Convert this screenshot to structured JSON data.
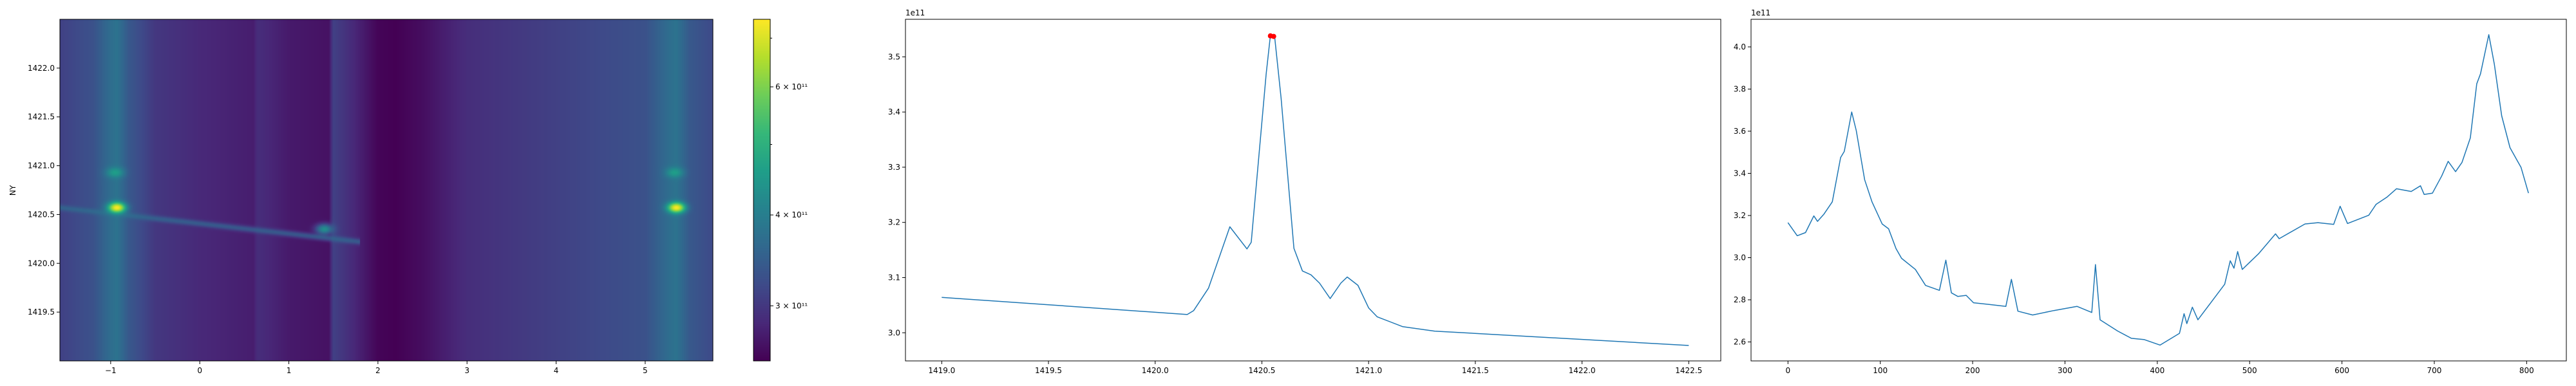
{
  "chart_data": [
    {
      "type": "heatmap",
      "xlabel": "",
      "ylabel": "NY",
      "xlim": [
        -1.57,
        5.76
      ],
      "ylim": [
        1419.0,
        1422.5
      ],
      "xticks": [
        -1,
        0,
        1,
        2,
        3,
        4,
        5
      ],
      "xtick_labels": [
        "−1",
        "0",
        "1",
        "2",
        "3",
        "4",
        "5"
      ],
      "yticks": [
        1419.5,
        1420.0,
        1420.5,
        1421.0,
        1421.5,
        1422.0
      ],
      "ytick_labels": [
        "1419.5",
        "1420.0",
        "1420.5",
        "1421.0",
        "1421.5",
        "1422.0"
      ],
      "colormap": "viridis",
      "colorbar": {
        "scale": "log",
        "range": [
          252000000000.0,
          743000000000.0
        ],
        "ticks": [
          300000000000.0,
          400000000000.0,
          600000000000.0
        ],
        "tick_labels": [
          "3 × 10¹¹",
          "4 × 10¹¹",
          "6 × 10¹¹"
        ]
      },
      "column_profile": {
        "x": [
          -1.57,
          -1.2,
          -1.0,
          -0.93,
          -0.8,
          -0.5,
          0,
          0.6,
          0.65,
          1.0,
          1.45,
          1.5,
          2.0,
          2.2,
          2.5,
          3.0,
          4.0,
          5.0,
          5.3,
          5.35,
          5.5,
          5.76
        ],
        "value": [
          310000000000.0,
          330000000000.0,
          370000000000.0,
          380000000000.0,
          340000000000.0,
          300000000000.0,
          285000000000.0,
          275000000000.0,
          290000000000.0,
          272000000000.0,
          265000000000.0,
          310000000000.0,
          255000000000.0,
          252000000000.0,
          262000000000.0,
          290000000000.0,
          310000000000.0,
          330000000000.0,
          375000000000.0,
          380000000000.0,
          340000000000.0,
          320000000000.0
        ]
      },
      "features": [
        {
          "x": -0.93,
          "y": 1420.57,
          "value": 740000000000.0
        },
        {
          "x": -0.95,
          "y": 1420.93,
          "value": 460000000000.0
        },
        {
          "x": 5.35,
          "y": 1420.57,
          "value": 740000000000.0
        },
        {
          "x": 5.33,
          "y": 1420.93,
          "value": 460000000000.0
        },
        {
          "x": 1.4,
          "y": 1420.35,
          "value": 430000000000.0
        }
      ],
      "streak": {
        "from": [
          -1.57,
          1420.57
        ],
        "to": [
          1.8,
          1420.22
        ],
        "value": 380000000000.0
      }
    },
    {
      "type": "line",
      "offset_label": "1e11",
      "xlim": [
        1418.83,
        1422.65
      ],
      "ylim": [
        2.949,
        3.568
      ],
      "xticks": [
        1419.0,
        1419.5,
        1420.0,
        1420.5,
        1421.0,
        1421.5,
        1422.0,
        1422.5
      ],
      "xtick_labels": [
        "1419.0",
        "1419.5",
        "1420.0",
        "1420.5",
        "1421.0",
        "1421.5",
        "1422.0",
        "1422.5"
      ],
      "yticks": [
        3.0,
        3.1,
        3.2,
        3.3,
        3.4,
        3.5
      ],
      "ytick_labels": [
        "3.0",
        "3.1",
        "3.2",
        "3.3",
        "3.4",
        "3.5"
      ],
      "color": "#1f77b4",
      "x": [
        1419.0,
        1419.49,
        1420.15,
        1420.18,
        1420.25,
        1420.35,
        1420.43,
        1420.45,
        1420.52,
        1420.54,
        1420.56,
        1420.59,
        1420.65,
        1420.69,
        1420.73,
        1420.77,
        1420.82,
        1420.87,
        1420.9,
        1420.95,
        1421.0,
        1421.04,
        1421.16,
        1421.31,
        1422.5
      ],
      "y": [
        3.064,
        3.051,
        3.033,
        3.04,
        3.081,
        3.192,
        3.152,
        3.164,
        3.469,
        3.539,
        3.536,
        3.425,
        3.153,
        3.112,
        3.105,
        3.09,
        3.062,
        3.09,
        3.101,
        3.086,
        3.045,
        3.029,
        3.011,
        3.003,
        2.977
      ],
      "markers": {
        "color": "#ff0000",
        "x": [
          1420.54,
          1420.555
        ],
        "y": [
          3.538,
          3.537
        ]
      }
    },
    {
      "type": "line",
      "offset_label": "1e11",
      "xlim": [
        -40,
        843
      ],
      "ylim": [
        2.51,
        4.131
      ],
      "xticks": [
        0,
        100,
        200,
        300,
        400,
        500,
        600,
        700,
        800
      ],
      "xtick_labels": [
        "0",
        "100",
        "200",
        "300",
        "400",
        "500",
        "600",
        "700",
        "800"
      ],
      "yticks": [
        2.6,
        2.8,
        3.0,
        3.2,
        3.4,
        3.6,
        3.8,
        4.0
      ],
      "ytick_labels": [
        "2.6",
        "2.8",
        "3.0",
        "3.2",
        "3.4",
        "3.6",
        "3.8",
        "4.0"
      ],
      "color": "#1f77b4",
      "x": [
        0,
        10,
        19,
        28,
        32,
        39,
        48,
        57,
        61,
        69,
        74,
        83,
        91,
        102,
        109,
        117,
        123,
        138,
        149,
        164,
        171,
        177,
        184,
        193,
        201,
        218,
        236,
        242,
        249,
        265,
        288,
        313,
        329,
        333,
        338,
        357,
        372,
        386,
        403,
        424,
        429,
        432,
        438,
        444,
        461,
        473,
        479,
        483,
        487,
        492,
        510,
        528,
        532,
        560,
        574,
        591,
        598,
        606,
        629,
        637,
        649,
        659,
        675,
        685,
        689,
        698,
        708,
        715,
        723,
        730,
        739,
        746,
        750,
        759,
        765,
        773,
        782,
        794,
        802
      ],
      "y": [
        3.166,
        3.104,
        3.119,
        3.198,
        3.172,
        3.207,
        3.265,
        3.475,
        3.504,
        3.691,
        3.603,
        3.37,
        3.265,
        3.16,
        3.137,
        3.043,
        2.997,
        2.944,
        2.868,
        2.845,
        2.988,
        2.833,
        2.816,
        2.821,
        2.786,
        2.778,
        2.769,
        2.897,
        2.746,
        2.728,
        2.749,
        2.769,
        2.74,
        2.967,
        2.705,
        2.652,
        2.617,
        2.611,
        2.585,
        2.641,
        2.734,
        2.687,
        2.765,
        2.705,
        2.804,
        2.874,
        2.985,
        2.95,
        3.029,
        2.944,
        3.02,
        3.113,
        3.09,
        3.16,
        3.166,
        3.158,
        3.244,
        3.162,
        3.201,
        3.253,
        3.288,
        3.327,
        3.314,
        3.341,
        3.3,
        3.306,
        3.387,
        3.457,
        3.408,
        3.452,
        3.568,
        3.825,
        3.872,
        4.058,
        3.918,
        3.673,
        3.522,
        3.428,
        3.306
      ]
    }
  ]
}
